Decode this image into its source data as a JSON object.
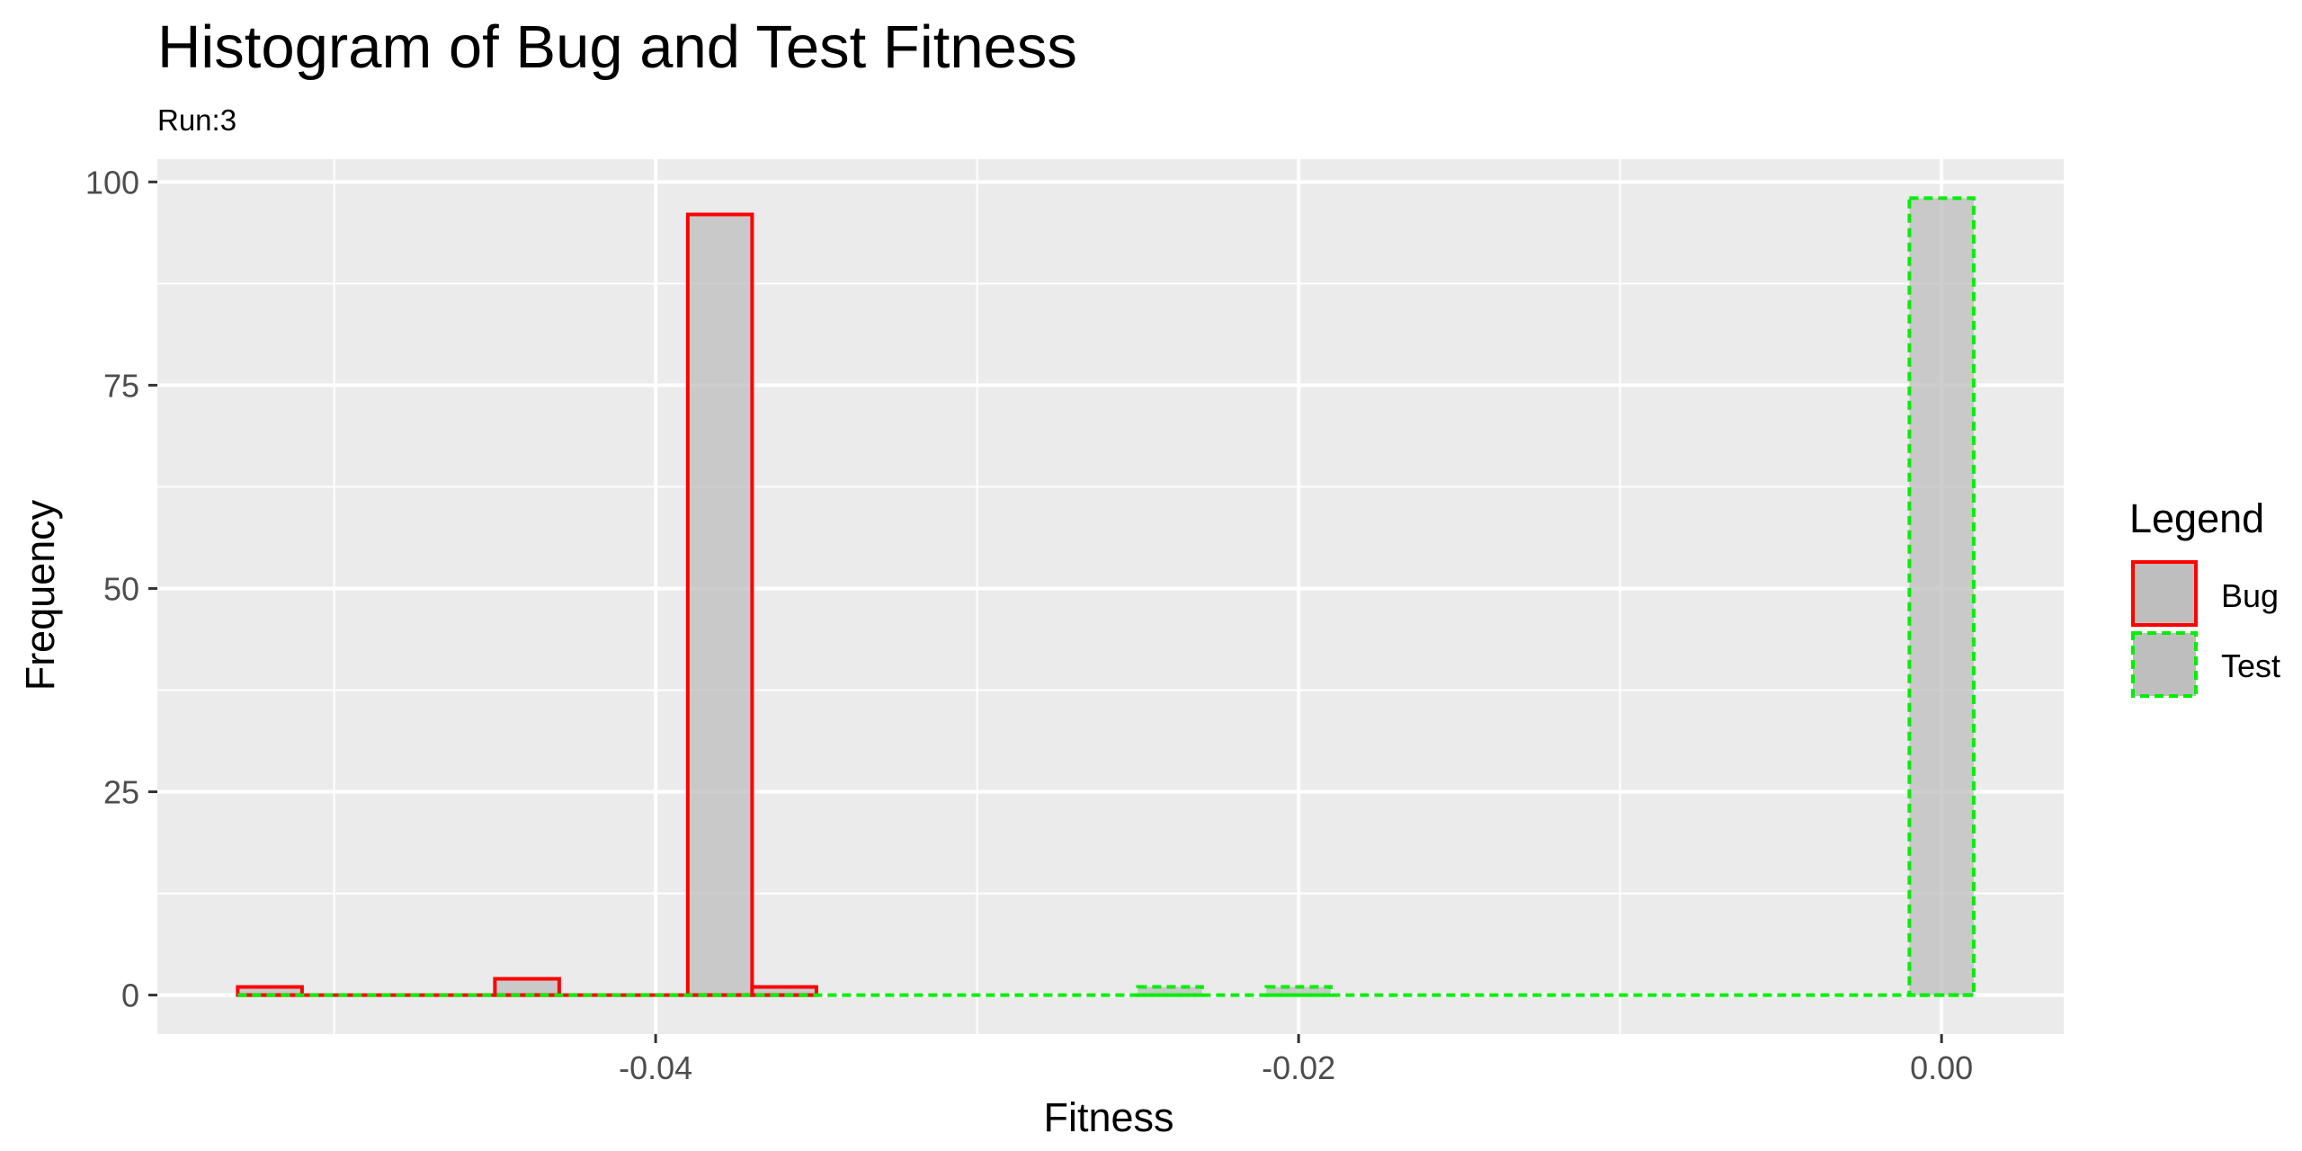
{
  "chart_data": {
    "type": "histogram",
    "title": "Histogram of Bug and Test Fitness",
    "subtitle": "Run:3",
    "xlabel": "Fitness",
    "ylabel": "Frequency",
    "xlim": [
      -0.0555,
      0.0038
    ],
    "ylim": [
      -4.8,
      102.8
    ],
    "x_ticks": [
      -0.04,
      -0.02,
      0.0
    ],
    "x_tick_labels": [
      "-0.04",
      "-0.02",
      "0.00"
    ],
    "y_ticks": [
      0,
      25,
      50,
      75,
      100
    ],
    "y_tick_labels": [
      "0",
      "25",
      "50",
      "75",
      "100"
    ],
    "bin_width": 0.002,
    "grid": true,
    "legend": {
      "title": "Legend",
      "position": "right",
      "entries": [
        "Bug",
        "Test"
      ]
    },
    "series": [
      {
        "name": "Bug",
        "color": "#ff0000",
        "linestyle": "solid",
        "fill": "#bebebe",
        "bins": [
          {
            "x": -0.052,
            "count": 1
          },
          {
            "x": -0.05,
            "count": 0
          },
          {
            "x": -0.048,
            "count": 0
          },
          {
            "x": -0.046,
            "count": 0
          },
          {
            "x": -0.044,
            "count": 2
          },
          {
            "x": -0.042,
            "count": 0
          },
          {
            "x": -0.04,
            "count": 0
          },
          {
            "x": -0.038,
            "count": 96
          },
          {
            "x": -0.036,
            "count": 1
          }
        ]
      },
      {
        "name": "Test",
        "color": "#00ee00",
        "linestyle": "dashed",
        "fill": "#bebebe",
        "bins": [
          {
            "x": -0.052,
            "count": 0
          },
          {
            "x": -0.024,
            "count": 1
          },
          {
            "x": -0.02,
            "count": 1
          },
          {
            "x": 0.0,
            "count": 98
          }
        ]
      }
    ]
  }
}
